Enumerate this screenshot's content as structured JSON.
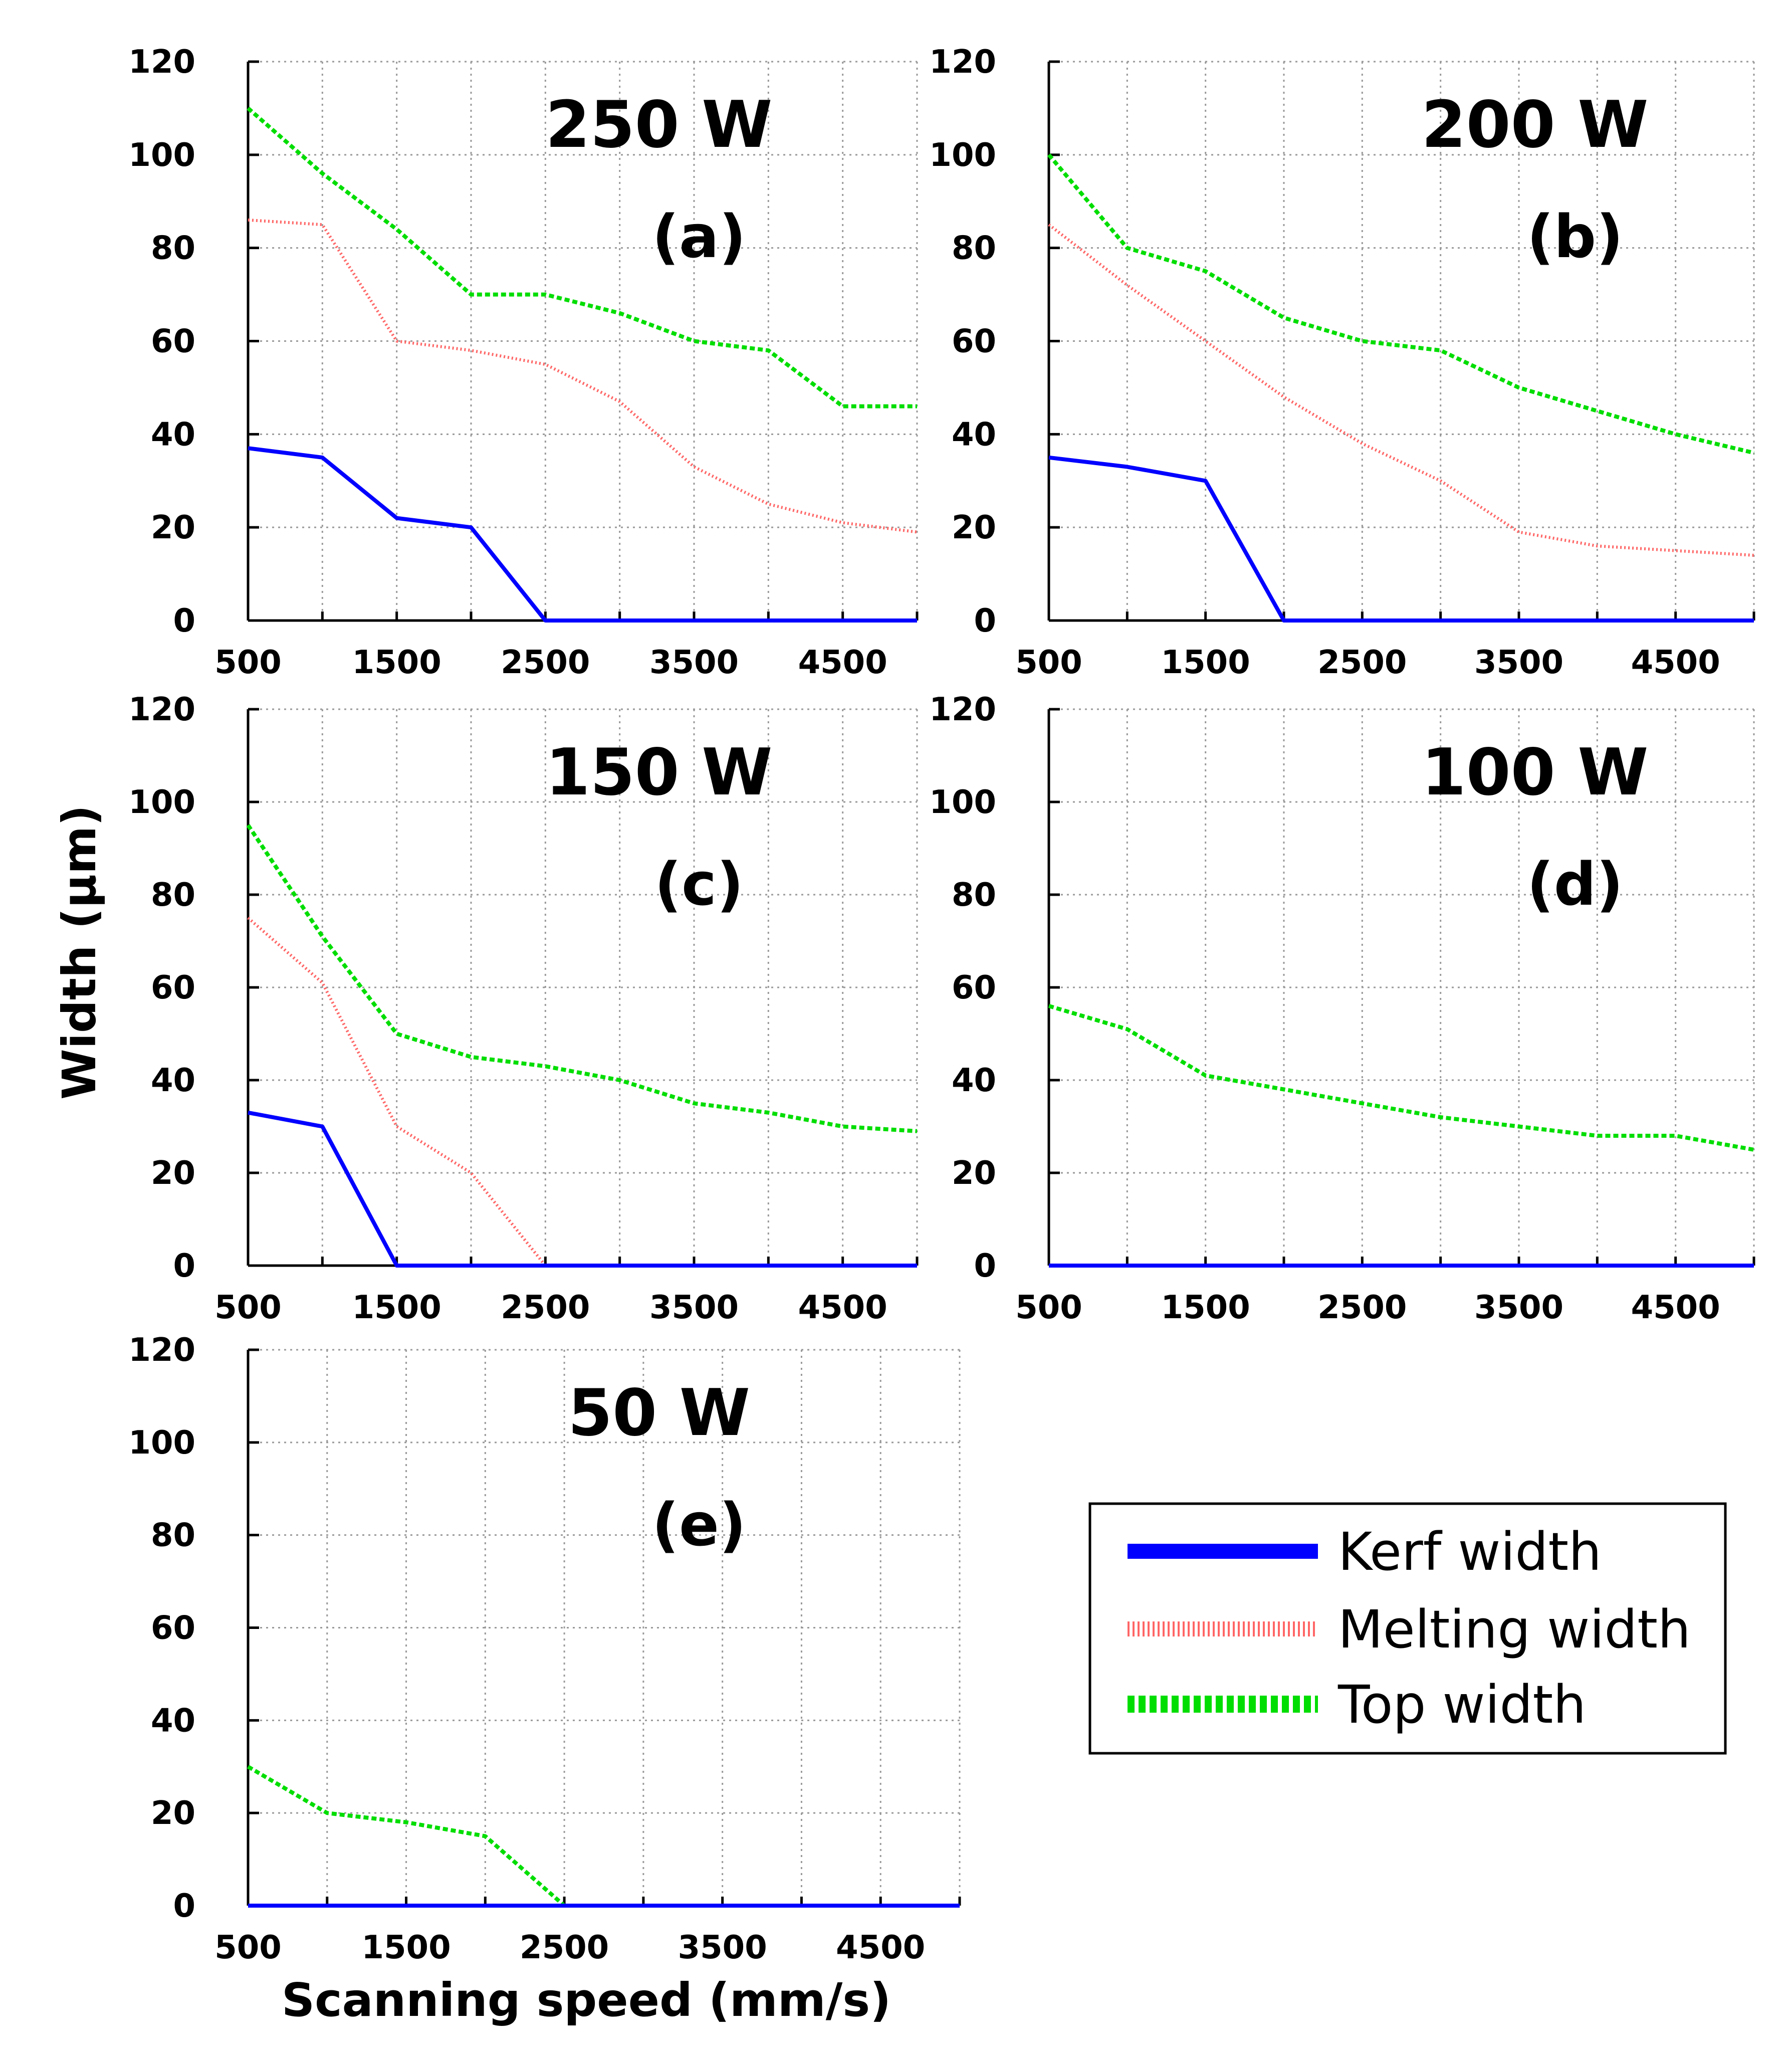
{
  "chart_data": {
    "type": "line",
    "ylabel": "Width (μm)",
    "xlabel": "Scanning speed (mm/s)",
    "xlim": [
      500,
      5000
    ],
    "ylim": [
      0,
      120
    ],
    "x_ticks": [
      "500",
      "1500",
      "2500",
      "3500",
      "4500"
    ],
    "y_ticks": [
      "0",
      "20",
      "40",
      "60",
      "80",
      "100",
      "120"
    ],
    "grid": true,
    "x": [
      500,
      1000,
      1500,
      2000,
      2500,
      3000,
      3500,
      4000,
      4500,
      5000
    ],
    "colors": {
      "kerf": "#0000ff",
      "melting": "#ff6666",
      "top": "#00dd00"
    },
    "legend": [
      "Kerf width",
      "Melting width",
      "Top width"
    ],
    "panels": [
      {
        "id": "a",
        "power": "250 W",
        "label": "(a)",
        "series": [
          {
            "name": "Kerf width",
            "values": [
              37,
              35,
              22,
              20,
              0,
              0,
              0,
              0,
              0,
              0
            ]
          },
          {
            "name": "Melting width",
            "values": [
              86,
              85,
              60,
              58,
              55,
              47,
              33,
              25,
              21,
              19
            ]
          },
          {
            "name": "Top width",
            "values": [
              110,
              96,
              84,
              70,
              70,
              66,
              60,
              58,
              46,
              46
            ]
          }
        ]
      },
      {
        "id": "b",
        "power": "200 W",
        "label": "(b)",
        "series": [
          {
            "name": "Kerf width",
            "values": [
              35,
              33,
              30,
              0,
              0,
              0,
              0,
              0,
              0,
              0
            ]
          },
          {
            "name": "Melting width",
            "values": [
              85,
              72,
              60,
              48,
              38,
              30,
              19,
              16,
              15,
              14
            ]
          },
          {
            "name": "Top width",
            "values": [
              100,
              80,
              75,
              65,
              60,
              58,
              50,
              45,
              40,
              36
            ]
          }
        ]
      },
      {
        "id": "c",
        "power": "150 W",
        "label": "(c)",
        "series": [
          {
            "name": "Kerf width",
            "values": [
              33,
              30,
              0,
              0,
              0,
              0,
              0,
              0,
              0,
              0
            ]
          },
          {
            "name": "Melting width",
            "values": [
              75,
              61,
              30,
              20,
              0,
              0,
              0,
              0,
              0,
              0
            ]
          },
          {
            "name": "Top width",
            "values": [
              95,
              71,
              50,
              45,
              43,
              40,
              35,
              33,
              30,
              29
            ]
          }
        ]
      },
      {
        "id": "d",
        "power": "100 W",
        "label": "(d)",
        "series": [
          {
            "name": "Kerf width",
            "values": [
              0,
              0,
              0,
              0,
              0,
              0,
              0,
              0,
              0,
              0
            ]
          },
          {
            "name": "Melting width",
            "values": [
              0,
              0,
              0,
              0,
              0,
              0,
              0,
              0,
              0,
              0
            ]
          },
          {
            "name": "Top width",
            "values": [
              56,
              51,
              41,
              38,
              35,
              32,
              30,
              28,
              28,
              25
            ]
          }
        ]
      },
      {
        "id": "e",
        "power": "50 W",
        "label": "(e)",
        "series": [
          {
            "name": "Kerf width",
            "values": [
              0,
              0,
              0,
              0,
              0,
              0,
              0,
              0,
              0,
              0
            ]
          },
          {
            "name": "Melting width",
            "values": [
              0,
              0,
              0,
              0,
              0,
              0,
              0,
              0,
              0,
              0
            ]
          },
          {
            "name": "Top width",
            "values": [
              30,
              20,
              18,
              15,
              0,
              0,
              0,
              0,
              0,
              0
            ]
          }
        ]
      }
    ]
  }
}
